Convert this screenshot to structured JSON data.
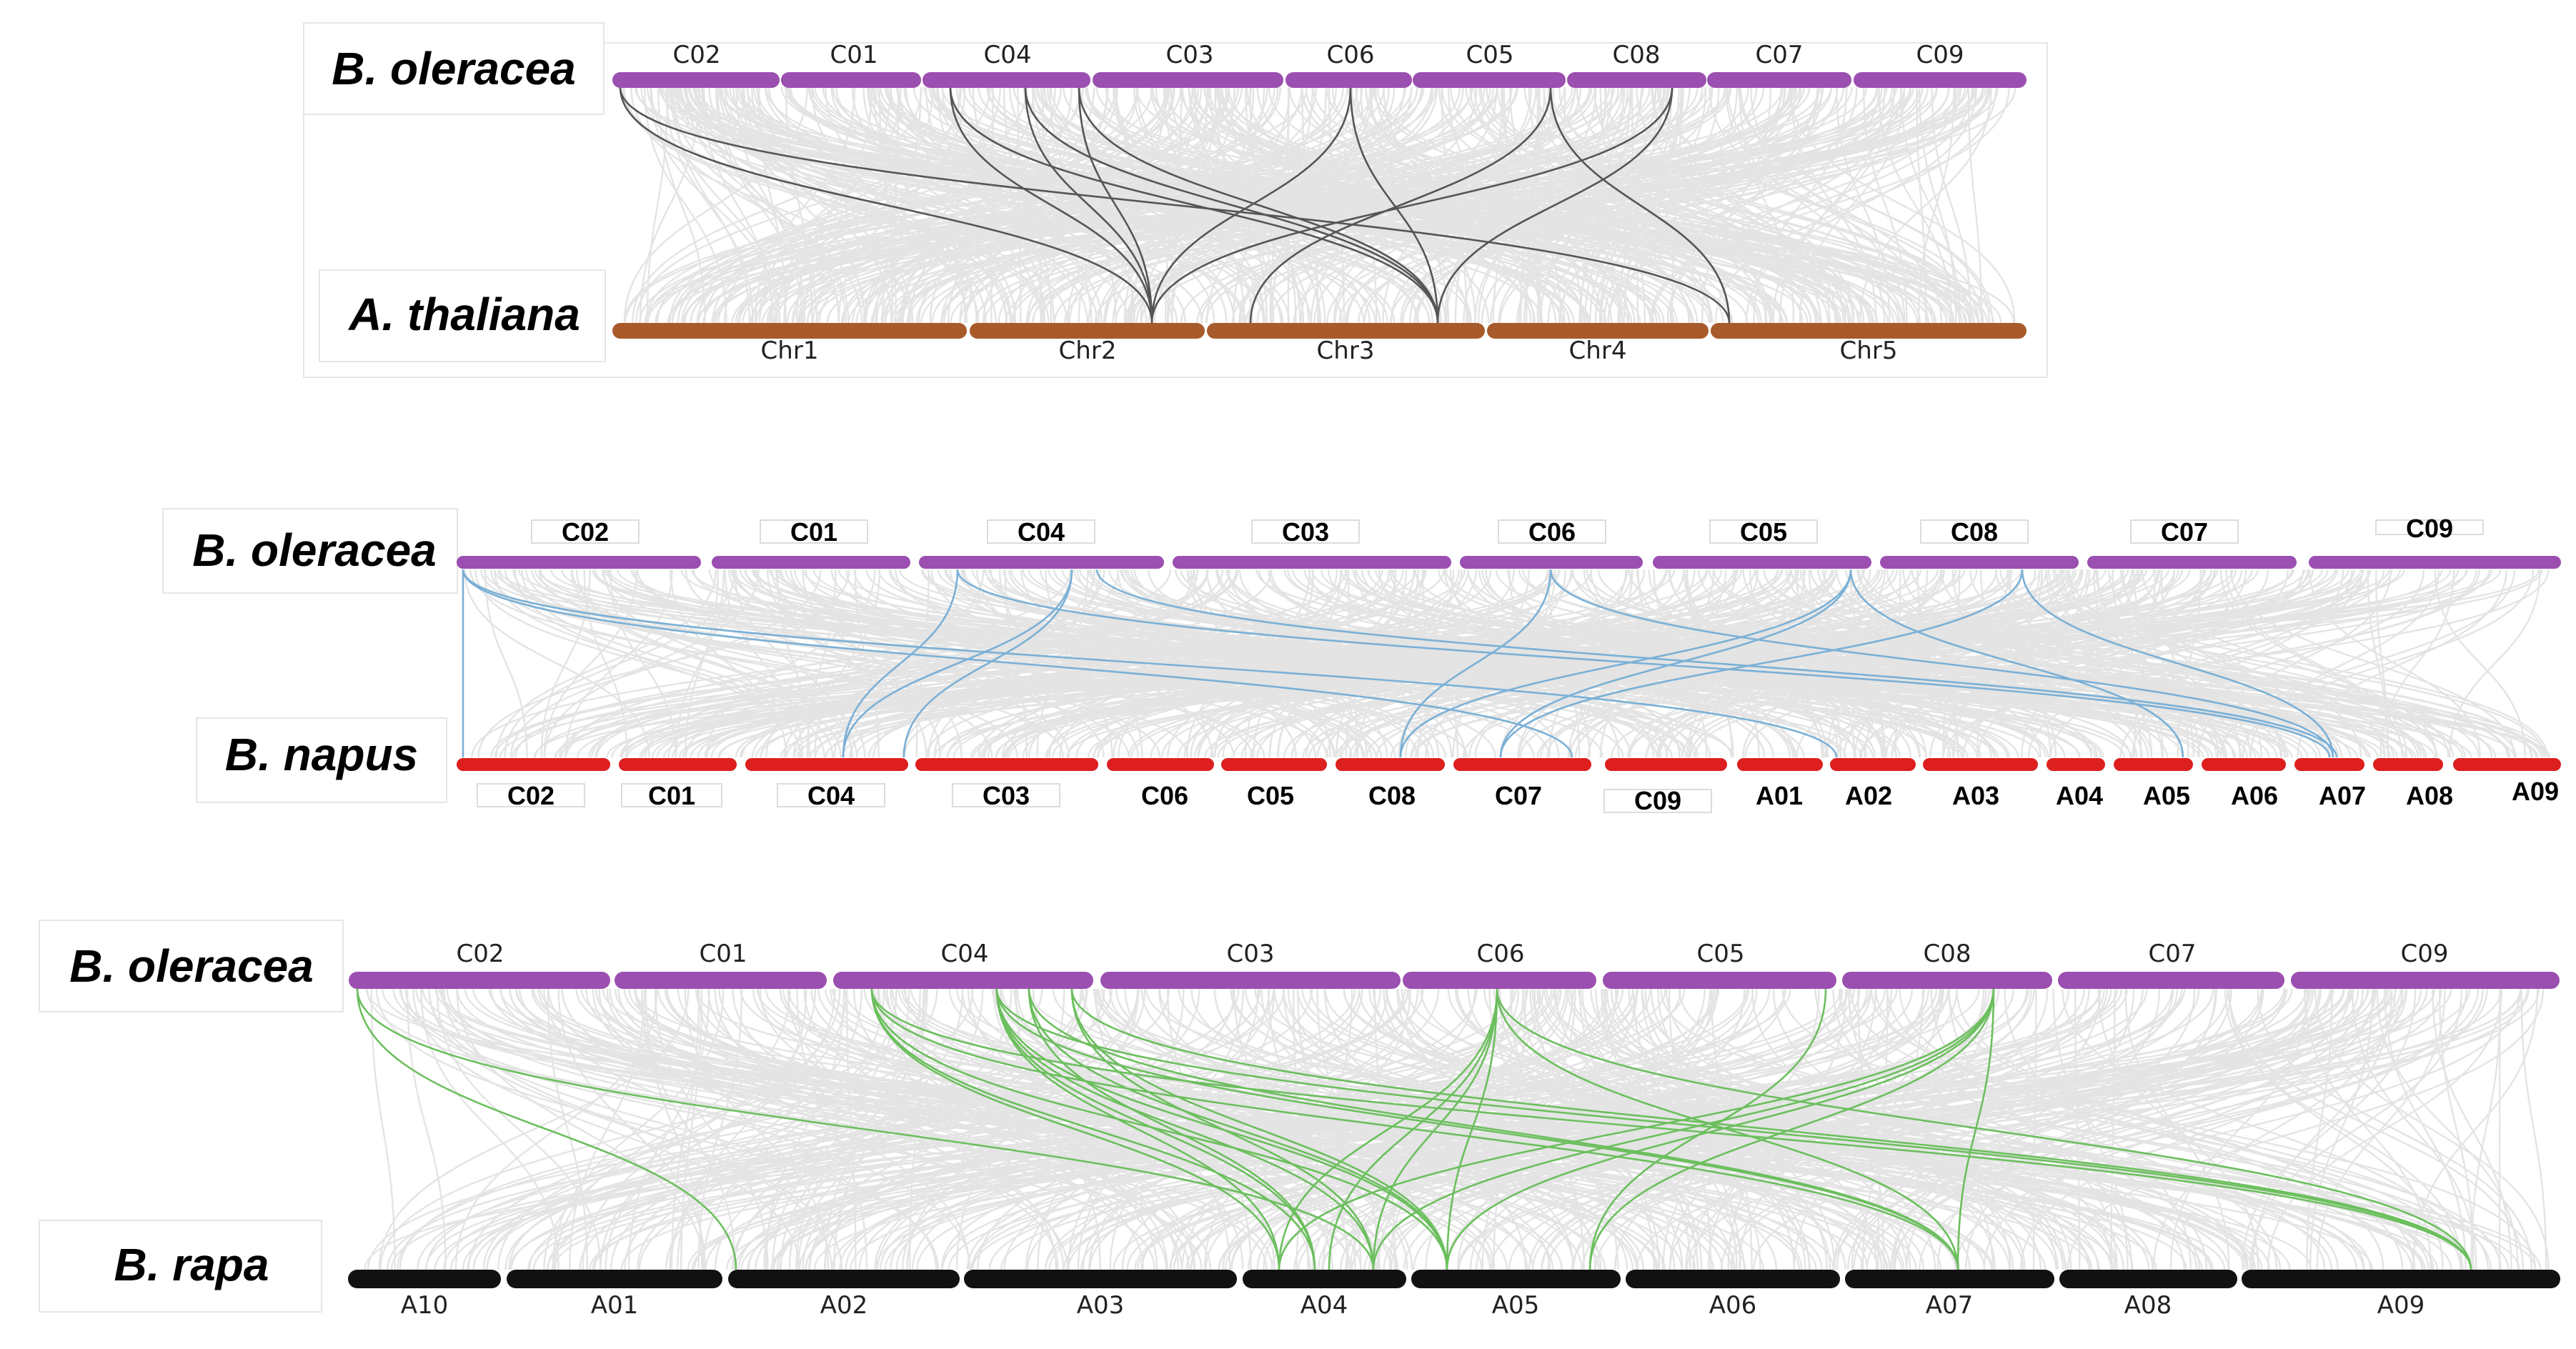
{
  "figure": {
    "panel1": {
      "top_species": "B. oleracea",
      "bottom_species": "A. thaliana",
      "top_color": "#9b4fb0",
      "bottom_color": "#a85a2a",
      "link_color": "#555555",
      "top_chromosomes": [
        "C02",
        "C01",
        "C04",
        "C03",
        "C06",
        "C05",
        "C08",
        "C07",
        "C09"
      ],
      "bottom_chromosomes": [
        "Chr1",
        "Chr2",
        "Chr3",
        "Chr4",
        "Chr5"
      ]
    },
    "panel2": {
      "top_species": "B. oleracea",
      "bottom_species": "B. napus",
      "top_color": "#9b4fb0",
      "bottom_color": "#dd1f1f",
      "link_color": "#7bb0d6",
      "top_chromosomes": [
        "C02",
        "C01",
        "C04",
        "C03",
        "C06",
        "C05",
        "C08",
        "C07",
        "C09"
      ],
      "bottom_chromosomes": [
        "C02",
        "C01",
        "C04",
        "C03",
        "C06",
        "C05",
        "C08",
        "C07",
        "C09",
        "A01",
        "A02",
        "A03",
        "A04",
        "A05",
        "A06",
        "A07",
        "A08",
        "A09"
      ]
    },
    "panel3": {
      "top_species": "B. oleracea",
      "bottom_species": "B. rapa",
      "top_color": "#9b4fb0",
      "bottom_color": "#111111",
      "link_color": "#6cbf5e",
      "top_chromosomes": [
        "C02",
        "C01",
        "C04",
        "C03",
        "C06",
        "C05",
        "C08",
        "C07",
        "C09"
      ],
      "bottom_chromosomes": [
        "A10",
        "A01",
        "A02",
        "A03",
        "A04",
        "A05",
        "A06",
        "A07",
        "A08",
        "A09"
      ]
    }
  }
}
